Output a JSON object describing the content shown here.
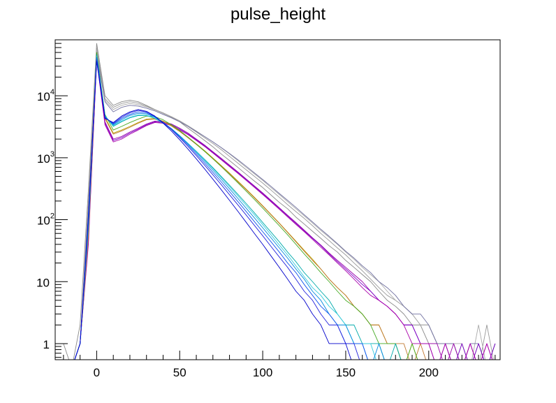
{
  "chart_data": {
    "type": "line",
    "title": "pulse_height",
    "xlabel": "",
    "ylabel": "",
    "xlim": [
      -25,
      243
    ],
    "ylim": [
      0.55,
      80000
    ],
    "yscale": "log",
    "grid": false,
    "legend": "none",
    "x_ticks": [
      {
        "value": 0,
        "label": "0"
      },
      {
        "value": 50,
        "label": "50"
      },
      {
        "value": 100,
        "label": "100"
      },
      {
        "value": 150,
        "label": "150"
      },
      {
        "value": 200,
        "label": "200"
      }
    ],
    "y_ticks": [
      {
        "value": 1,
        "label": "1",
        "exp": ""
      },
      {
        "value": 10,
        "label": "10",
        "exp": ""
      },
      {
        "value": 100,
        "label": "10",
        "exp": "2"
      },
      {
        "value": 1000,
        "label": "10",
        "exp": "3"
      },
      {
        "value": 10000,
        "label": "10",
        "exp": "4"
      }
    ],
    "x": [
      -20,
      -15,
      -10,
      -5,
      0,
      5,
      10,
      15,
      20,
      25,
      30,
      35,
      40,
      45,
      50,
      55,
      60,
      65,
      70,
      75,
      80,
      85,
      90,
      95,
      100,
      105,
      110,
      115,
      120,
      125,
      130,
      135,
      140,
      145,
      150,
      155,
      160,
      165,
      170,
      175,
      180,
      185,
      190,
      195,
      200,
      205,
      210,
      215,
      220,
      225,
      230,
      235,
      240
    ],
    "series": [
      {
        "color": "#888888",
        "values": [
          1,
          0.4,
          2,
          300,
          70000,
          10000,
          7000,
          8000,
          8500,
          8000,
          7000,
          6000,
          5200,
          4500,
          3800,
          3000,
          2400,
          1900,
          1500,
          1150,
          900,
          700,
          540,
          420,
          330,
          250,
          190,
          150,
          110,
          85,
          65,
          50,
          38,
          30,
          22,
          17,
          13,
          10,
          7,
          5,
          4,
          3,
          2,
          2,
          1,
          1,
          1,
          0.4,
          1,
          0.4,
          1,
          0.4,
          1
        ]
      },
      {
        "color": "#999999",
        "values": [
          0.4,
          0.4,
          1,
          200,
          60000,
          9000,
          6500,
          7500,
          8000,
          7600,
          6800,
          6000,
          5300,
          4600,
          3900,
          3200,
          2600,
          2100,
          1700,
          1350,
          1050,
          820,
          640,
          500,
          390,
          300,
          230,
          175,
          135,
          105,
          80,
          60,
          46,
          35,
          27,
          20,
          15,
          11,
          8,
          6,
          5,
          4,
          3,
          2,
          2,
          1,
          1,
          1,
          0.4,
          1,
          0.4,
          2,
          0.4
        ]
      },
      {
        "color": "#aaaaaa",
        "values": [
          0.4,
          0.4,
          1,
          150,
          55000,
          8500,
          6000,
          7000,
          7500,
          7200,
          6600,
          5900,
          5200,
          4600,
          3950,
          3300,
          2700,
          2200,
          1800,
          1450,
          1150,
          900,
          700,
          550,
          430,
          330,
          255,
          195,
          150,
          115,
          88,
          67,
          52,
          40,
          30,
          23,
          17,
          13,
          10,
          7,
          5,
          4,
          3,
          2,
          2,
          1,
          1,
          1,
          1,
          0.4,
          2,
          0.4,
          1
        ]
      },
      {
        "color": "#7070a0",
        "values": [
          0.4,
          0.4,
          1,
          100,
          48000,
          8000,
          5500,
          6500,
          7000,
          6800,
          6300,
          5700,
          5000,
          4400,
          3800,
          3200,
          2650,
          2200,
          1800,
          1460,
          1170,
          930,
          730,
          570,
          445,
          345,
          265,
          205,
          158,
          120,
          92,
          70,
          54,
          41,
          31,
          24,
          18,
          14,
          10,
          8,
          6,
          4,
          3,
          3,
          2,
          1,
          1,
          1,
          0.4,
          1,
          1,
          0.4,
          1
        ]
      },
      {
        "color": "#9900aa",
        "values": [
          0.4,
          0.4,
          1,
          50,
          42000,
          3800,
          2000,
          2200,
          2600,
          3000,
          3500,
          3900,
          3800,
          3500,
          3000,
          2500,
          2000,
          1600,
          1250,
          980,
          760,
          590,
          455,
          350,
          270,
          205,
          156,
          118,
          90,
          68,
          51,
          39,
          29,
          22,
          17,
          13,
          10,
          7,
          5,
          4,
          3,
          2,
          2,
          1,
          1,
          1,
          0.4,
          1,
          0.4,
          1,
          0.4,
          1,
          0.4
        ]
      },
      {
        "color": "#7a00c8",
        "values": [
          0.4,
          0.4,
          1,
          45,
          40000,
          3600,
          1900,
          2100,
          2500,
          2900,
          3400,
          3800,
          3700,
          3400,
          2900,
          2420,
          1950,
          1560,
          1220,
          950,
          740,
          575,
          445,
          342,
          262,
          200,
          152,
          115,
          87,
          66,
          50,
          38,
          28,
          21,
          16,
          12,
          9,
          7,
          5,
          4,
          3,
          2,
          2,
          1,
          1,
          0.4,
          1,
          0.4,
          1,
          0.4,
          1,
          0.4,
          1
        ]
      },
      {
        "color": "#aa00aa",
        "values": [
          0.4,
          0.4,
          1,
          40,
          38000,
          3400,
          1800,
          2000,
          2400,
          2800,
          3300,
          3700,
          3600,
          3300,
          2800,
          2350,
          1900,
          1520,
          1190,
          925,
          720,
          560,
          432,
          332,
          255,
          194,
          147,
          111,
          84,
          64,
          48,
          36,
          27,
          20,
          15,
          11,
          8,
          6,
          5,
          4,
          3,
          2,
          1,
          1,
          1,
          0.4,
          1,
          0.4,
          0.4,
          1,
          0.4,
          1,
          0.4
        ]
      },
      {
        "color": "#b8a000",
        "values": [
          0.4,
          0.4,
          1,
          60,
          45000,
          4500,
          2500,
          2800,
          3200,
          3700,
          4200,
          4300,
          3900,
          3300,
          2700,
          2150,
          1680,
          1300,
          990,
          750,
          565,
          420,
          312,
          230,
          168,
          122,
          88,
          63,
          45,
          32,
          23,
          16,
          11,
          8,
          6,
          4,
          3,
          2,
          2,
          1,
          1,
          0.4,
          1,
          0.4,
          0.4,
          0.4,
          0.4,
          0.4,
          0.4,
          0.4,
          0.4,
          0.4,
          0.4
        ]
      },
      {
        "color": "#c07830",
        "values": [
          0.4,
          0.4,
          1,
          55,
          43000,
          4300,
          2400,
          2700,
          3100,
          3600,
          4100,
          4200,
          3850,
          3250,
          2650,
          2100,
          1640,
          1270,
          970,
          735,
          552,
          410,
          305,
          225,
          165,
          120,
          87,
          62,
          44,
          31,
          22,
          16,
          11,
          8,
          6,
          4,
          3,
          2,
          2,
          1,
          1,
          1,
          0.4,
          1,
          0.4,
          0.4,
          0.4,
          0.4,
          0.4,
          0.4,
          0.4,
          0.4,
          0.4
        ]
      },
      {
        "color": "#44aa22",
        "values": [
          0.4,
          0.4,
          1,
          70,
          50000,
          5000,
          2800,
          3200,
          3700,
          4200,
          4700,
          4600,
          4100,
          3400,
          2750,
          2150,
          1660,
          1270,
          960,
          720,
          535,
          395,
          290,
          212,
          154,
          111,
          80,
          57,
          40,
          28,
          20,
          14,
          10,
          7,
          5,
          4,
          3,
          2,
          1,
          1,
          1,
          0.4,
          1,
          0.4,
          0.4,
          0.4,
          0.4,
          0.4,
          0.4,
          0.4,
          0.4,
          0.4,
          0.4
        ]
      },
      {
        "color": "#00aaaa",
        "values": [
          0.4,
          0.4,
          1,
          80,
          46000,
          4800,
          3200,
          3800,
          4400,
          4800,
          4800,
          4300,
          3600,
          2900,
          2250,
          1700,
          1270,
          940,
          690,
          500,
          360,
          258,
          183,
          129,
          90,
          63,
          44,
          30,
          21,
          14,
          10,
          7,
          5,
          3,
          2,
          2,
          1,
          1,
          1,
          0.4,
          1,
          0.4,
          0.4,
          0.4,
          0.4,
          0.4,
          0.4,
          0.4,
          0.4,
          0.4,
          0.4,
          0.4,
          0.4
        ]
      },
      {
        "color": "#33ccdd",
        "values": [
          0.4,
          0.4,
          1,
          75,
          44000,
          4700,
          3300,
          3900,
          4500,
          4900,
          4850,
          4350,
          3650,
          2950,
          2280,
          1710,
          1260,
          920,
          670,
          480,
          343,
          243,
          171,
          120,
          83,
          57,
          39,
          27,
          18,
          12,
          8,
          6,
          4,
          3,
          2,
          1,
          1,
          1,
          0.4,
          0.4,
          0.4,
          0.4,
          0.4,
          0.4,
          0.4,
          0.4,
          0.4,
          0.4,
          0.4,
          0.4,
          0.4,
          0.4,
          0.4
        ]
      },
      {
        "color": "#0088dd",
        "values": [
          0.4,
          0.4,
          1,
          90,
          42000,
          4600,
          3400,
          4100,
          4800,
          5200,
          5100,
          4500,
          3700,
          2950,
          2250,
          1670,
          1220,
          880,
          630,
          448,
          316,
          221,
          154,
          107,
          74,
          51,
          35,
          24,
          16,
          11,
          7,
          5,
          3,
          2,
          2,
          1,
          1,
          0.4,
          1,
          0.4,
          0.4,
          0.4,
          0.4,
          0.4,
          0.4,
          0.4,
          0.4,
          0.4,
          0.4,
          0.4,
          0.4,
          0.4,
          0.4
        ]
      },
      {
        "color": "#1155ee",
        "values": [
          0.4,
          0.4,
          1,
          100,
          40000,
          4500,
          3500,
          4300,
          5000,
          5500,
          5300,
          4600,
          3700,
          2900,
          2180,
          1600,
          1150,
          820,
          580,
          408,
          284,
          197,
          136,
          93,
          64,
          44,
          30,
          20,
          14,
          9,
          6,
          4,
          3,
          2,
          1,
          1,
          1,
          0.4,
          0.4,
          0.4,
          0.4,
          0.4,
          0.4,
          0.4,
          0.4,
          0.4,
          0.4,
          0.4,
          0.4,
          0.4,
          0.4,
          0.4,
          0.4
        ]
      },
      {
        "color": "#2222dd",
        "values": [
          0.4,
          0.4,
          1,
          110,
          38000,
          4400,
          3600,
          4500,
          5300,
          5800,
          5500,
          4700,
          3700,
          2850,
          2100,
          1520,
          1080,
          760,
          530,
          368,
          253,
          174,
          119,
          81,
          55,
          37,
          25,
          17,
          11,
          7,
          5,
          3,
          2,
          2,
          1,
          1,
          0.4,
          0.4,
          0.4,
          0.4,
          0.4,
          0.4,
          0.4,
          0.4,
          0.4,
          0.4,
          0.4,
          0.4,
          0.4,
          0.4,
          0.4,
          0.4,
          0.4
        ]
      },
      {
        "color": "#0000cc",
        "values": [
          0.4,
          0.4,
          1,
          120,
          36000,
          4300,
          3700,
          4700,
          5500,
          6000,
          5600,
          4700,
          3600,
          2700,
          1950,
          1380,
          960,
          660,
          450,
          305,
          205,
          137,
          91,
          60,
          40,
          26,
          17,
          11,
          7,
          5,
          3,
          2,
          1,
          1,
          1,
          0.4,
          0.4,
          0.4,
          0.4,
          0.4,
          0.4,
          0.4,
          0.4,
          0.4,
          0.4,
          0.4,
          0.4,
          0.4,
          0.4,
          0.4,
          0.4,
          0.4,
          0.4
        ]
      }
    ]
  }
}
